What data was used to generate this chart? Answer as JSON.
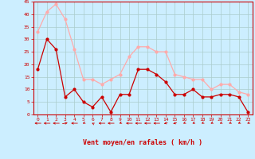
{
  "x": [
    0,
    1,
    2,
    3,
    4,
    5,
    6,
    7,
    8,
    9,
    10,
    11,
    12,
    13,
    14,
    15,
    16,
    17,
    18,
    19,
    20,
    21,
    22,
    23
  ],
  "rafales": [
    33,
    41,
    44,
    38,
    26,
    14,
    14,
    12,
    14,
    16,
    23,
    27,
    27,
    25,
    25,
    16,
    15,
    14,
    14,
    10,
    12,
    12,
    9,
    8
  ],
  "moyen": [
    18,
    30,
    26,
    7,
    10,
    5,
    3,
    7,
    1,
    8,
    8,
    18,
    18,
    16,
    13,
    8,
    8,
    10,
    7,
    7,
    8,
    8,
    7,
    1
  ],
  "line_color_rafales": "#ffaaaa",
  "line_color_moyen": "#cc0000",
  "bg_color": "#cceeff",
  "grid_color": "#aacccc",
  "xlabel": "Vent moyen/en rafales ( km/h )",
  "xlabel_color": "#cc0000",
  "tick_color": "#cc0000",
  "arrow_color": "#cc0000",
  "ylim": [
    0,
    45
  ],
  "yticks": [
    0,
    5,
    10,
    15,
    20,
    25,
    30,
    35,
    40,
    45
  ],
  "border_color": "#cc0000",
  "arrow_angles_deg": [
    270,
    270,
    270,
    60,
    270,
    210,
    330,
    270,
    270,
    210,
    270,
    270,
    270,
    270,
    225,
    225,
    210,
    210,
    210,
    210,
    210,
    210,
    210,
    210
  ]
}
